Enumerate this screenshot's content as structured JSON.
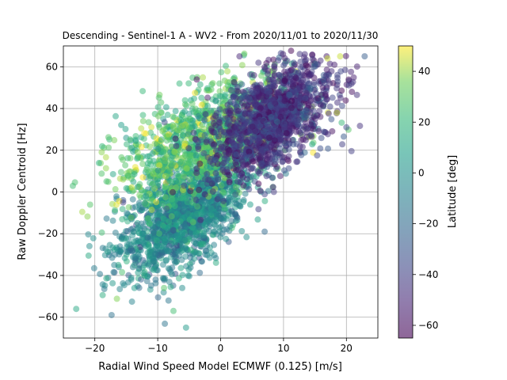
{
  "chart_data": {
    "type": "scatter",
    "title": "Descending - Sentinel-1 A - WV2 - From 2020/11/01 to 2020/11/30",
    "xlabel": "Radial Wind Speed Model ECMWF (0.125) [m/s]",
    "ylabel": "Raw Doppler Centroid [Hz]",
    "xlim": [
      -25,
      25
    ],
    "ylim": [
      -70,
      70
    ],
    "xticks": [
      -20,
      -10,
      0,
      10,
      20
    ],
    "yticks": [
      -60,
      -40,
      -20,
      0,
      20,
      40,
      60
    ],
    "xtick_labels": [
      "−20",
      "−10",
      "0",
      "10",
      "20"
    ],
    "ytick_labels": [
      "−60",
      "−40",
      "−20",
      "0",
      "20",
      "40",
      "60"
    ],
    "grid": true,
    "colormap": "viridis",
    "point_alpha": 0.5,
    "colorbar": {
      "label": "Latitude [deg]",
      "range": [
        -65,
        50
      ],
      "ticks": [
        -60,
        -40,
        -20,
        0,
        20,
        40
      ],
      "tick_labels": [
        "−60",
        "−40",
        "−20",
        "0",
        "20",
        "40"
      ]
    },
    "point_clusters": [
      {
        "description": "southern-latitude points",
        "x_mean": -6,
        "y_mean": -12,
        "x_sd": 5,
        "y_sd": 14,
        "lat_mean": -5,
        "lat_sd": 12
      },
      {
        "description": "northern-hemisphere points",
        "x_mean": -2,
        "y_mean": 25,
        "x_sd": 7,
        "y_sd": 15,
        "lat_mean": 25,
        "lat_sd": 12
      },
      {
        "description": "southern-ocean points",
        "x_mean": 8,
        "y_mean": 35,
        "x_sd": 5,
        "y_sd": 14,
        "lat_mean": -45,
        "lat_sd": 10
      }
    ],
    "sample_points": [
      {
        "x": -5.5,
        "y": -65,
        "lat": 5
      },
      {
        "x": -7.5,
        "y": -57,
        "lat": 25
      },
      {
        "x": 20,
        "y": 31,
        "lat": -35
      },
      {
        "x": -15.5,
        "y": 6,
        "lat": 40
      },
      {
        "x": -15.5,
        "y": -5,
        "lat": -40
      },
      {
        "x": 17,
        "y": 64,
        "lat": 45
      },
      {
        "x": 19,
        "y": 65,
        "lat": 45
      },
      {
        "x": 3,
        "y": 65,
        "lat": -50
      },
      {
        "x": 18.5,
        "y": 38,
        "lat": 45
      },
      {
        "x": 7,
        "y": -19,
        "lat": -20
      },
      {
        "x": -12,
        "y": -34,
        "lat": -10
      },
      {
        "x": -9,
        "y": -46,
        "lat": 30
      }
    ]
  }
}
